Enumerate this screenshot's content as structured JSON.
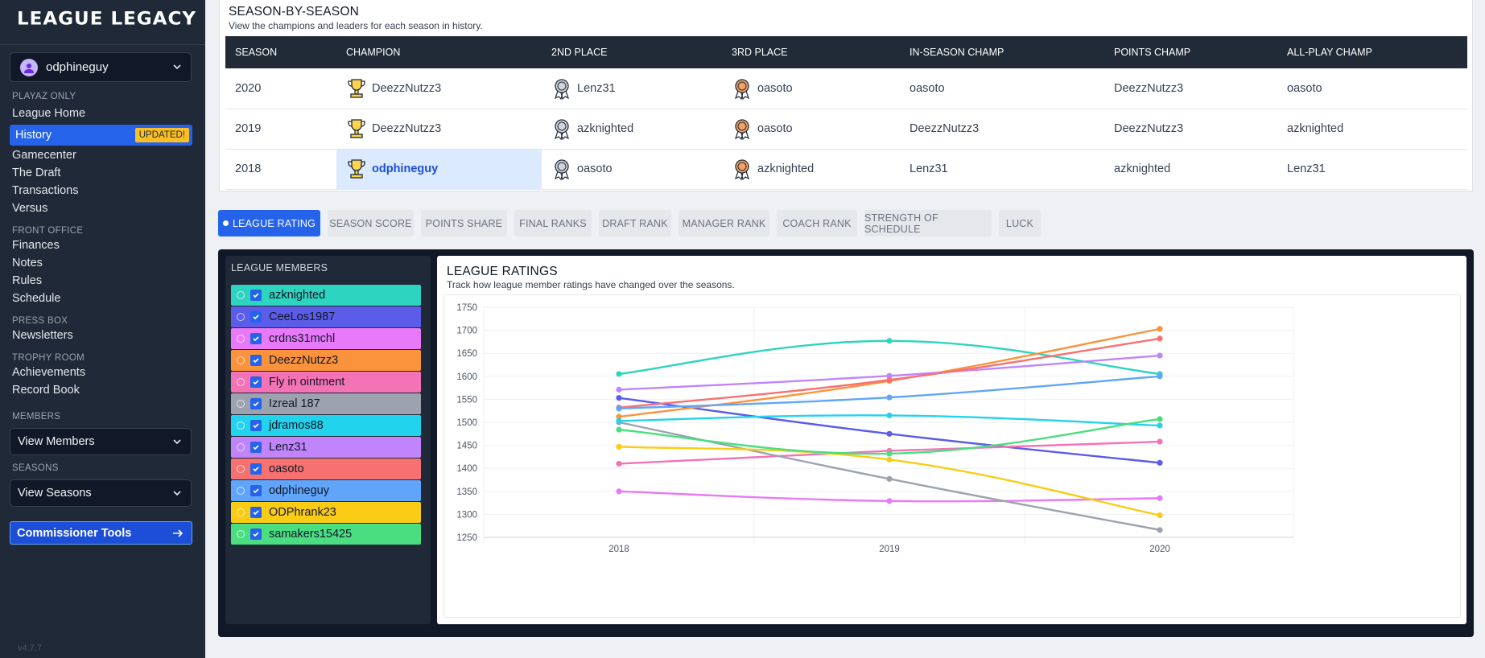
{
  "app": {
    "title": "LEAGUE LEGACY",
    "version": "v4.7.7"
  },
  "user": {
    "name": "odphineguy"
  },
  "sidebar": {
    "sections": [
      {
        "label": "PLAYAZ ONLY"
      },
      {
        "label": "FRONT OFFICE"
      },
      {
        "label": "PRESS BOX"
      },
      {
        "label": "TROPHY ROOM"
      },
      {
        "label": "MEMBERS"
      },
      {
        "label": "SEASONS"
      }
    ],
    "items": {
      "league_home": "League Home",
      "history": "History",
      "history_badge": "UPDATED!",
      "gamecenter": "Gamecenter",
      "the_draft": "The Draft",
      "transactions": "Transactions",
      "versus": "Versus",
      "finances": "Finances",
      "notes": "Notes",
      "rules": "Rules",
      "schedule": "Schedule",
      "newsletters": "Newsletters",
      "achievements": "Achievements",
      "record_book": "Record Book"
    },
    "view_members": "View Members",
    "view_seasons": "View Seasons",
    "commissioner_tools": "Commissioner Tools"
  },
  "season_by_season": {
    "title": "SEASON-BY-SEASON",
    "subtitle": "View the champions and leaders for each season in history.",
    "columns": [
      "SEASON",
      "CHAMPION",
      "2ND PLACE",
      "3RD PLACE",
      "IN-SEASON CHAMP",
      "POINTS CHAMP",
      "ALL-PLAY CHAMP"
    ],
    "rows": [
      {
        "season": "2020",
        "champion": "DeezzNutzz3",
        "second": "Lenz31",
        "third": "oasoto",
        "in_season": "oasoto",
        "points": "DeezzNutzz3",
        "all_play": "oasoto"
      },
      {
        "season": "2019",
        "champion": "DeezzNutzz3",
        "second": "azknighted",
        "third": "oasoto",
        "in_season": "DeezzNutzz3",
        "points": "DeezzNutzz3",
        "all_play": "azknighted"
      },
      {
        "season": "2018",
        "champion": "odphineguy",
        "second": "oasoto",
        "third": "azknighted",
        "in_season": "Lenz31",
        "points": "azknighted",
        "all_play": "Lenz31"
      }
    ]
  },
  "tabs": [
    {
      "label": "LEAGUE RATING",
      "active": true
    },
    {
      "label": "SEASON SCORE"
    },
    {
      "label": "POINTS SHARE"
    },
    {
      "label": "FINAL RANKS"
    },
    {
      "label": "DRAFT RANK"
    },
    {
      "label": "MANAGER RANK"
    },
    {
      "label": "COACH RANK"
    },
    {
      "label": "STRENGTH OF SCHEDULE"
    },
    {
      "label": "LUCK"
    }
  ],
  "members_panel": {
    "title": "LEAGUE MEMBERS",
    "members": [
      {
        "name": "azknighted",
        "color": "#2dd4bf",
        "checked": true
      },
      {
        "name": "CeeLos1987",
        "color": "#5b5ce8",
        "checked": true
      },
      {
        "name": "crdns31mchl",
        "color": "#e879f9",
        "checked": true
      },
      {
        "name": "DeezzNutzz3",
        "color": "#fb923c",
        "checked": true
      },
      {
        "name": "Fly in ointment",
        "color": "#f472b6",
        "checked": true
      },
      {
        "name": "Izreal 187",
        "color": "#9ca3af",
        "checked": true
      },
      {
        "name": "jdramos88",
        "color": "#22d3ee",
        "checked": true
      },
      {
        "name": "Lenz31",
        "color": "#c084fc",
        "checked": true
      },
      {
        "name": "oasoto",
        "color": "#f87171",
        "checked": true
      },
      {
        "name": "odphineguy",
        "color": "#60a5fa",
        "checked": true
      },
      {
        "name": "ODPhrank23",
        "color": "#facc15",
        "checked": true
      },
      {
        "name": "samakers15425",
        "color": "#4ade80",
        "checked": true
      }
    ]
  },
  "chart_card": {
    "title": "LEAGUE RATINGS",
    "subtitle": "Track how league member ratings have changed over the seasons."
  },
  "chart_data": {
    "type": "line",
    "title": "LEAGUE RATINGS",
    "x": [
      "2018",
      "2019",
      "2020"
    ],
    "ylim": [
      1250,
      1750
    ],
    "yticks": [
      1250,
      1300,
      1350,
      1400,
      1450,
      1500,
      1550,
      1600,
      1650,
      1700,
      1750
    ],
    "grid": true,
    "series": [
      {
        "name": "azknighted",
        "color": "#2dd4bf",
        "values": [
          1605,
          1677,
          1605
        ]
      },
      {
        "name": "CeeLos1987",
        "color": "#5b5ce8",
        "values": [
          1553,
          1475,
          1412
        ]
      },
      {
        "name": "crdns31mchl",
        "color": "#e879f9",
        "values": [
          1350,
          1329,
          1335
        ]
      },
      {
        "name": "DeezzNutzz3",
        "color": "#fb923c",
        "values": [
          1512,
          1590,
          1703
        ]
      },
      {
        "name": "Fly in ointment",
        "color": "#f472b6",
        "values": [
          1410,
          1438,
          1458
        ]
      },
      {
        "name": "Izreal 187",
        "color": "#9ca3af",
        "values": [
          1500,
          1377,
          1266
        ]
      },
      {
        "name": "jdramos88",
        "color": "#22d3ee",
        "values": [
          1503,
          1515,
          1493
        ]
      },
      {
        "name": "Lenz31",
        "color": "#c084fc",
        "values": [
          1571,
          1601,
          1645
        ]
      },
      {
        "name": "oasoto",
        "color": "#f87171",
        "values": [
          1532,
          1592,
          1682
        ]
      },
      {
        "name": "odphineguy",
        "color": "#60a5fa",
        "values": [
          1530,
          1554,
          1600
        ]
      },
      {
        "name": "ODPhrank23",
        "color": "#facc15",
        "values": [
          1447,
          1419,
          1298
        ]
      },
      {
        "name": "samakers15425",
        "color": "#4ade80",
        "values": [
          1484,
          1432,
          1507
        ]
      }
    ]
  }
}
